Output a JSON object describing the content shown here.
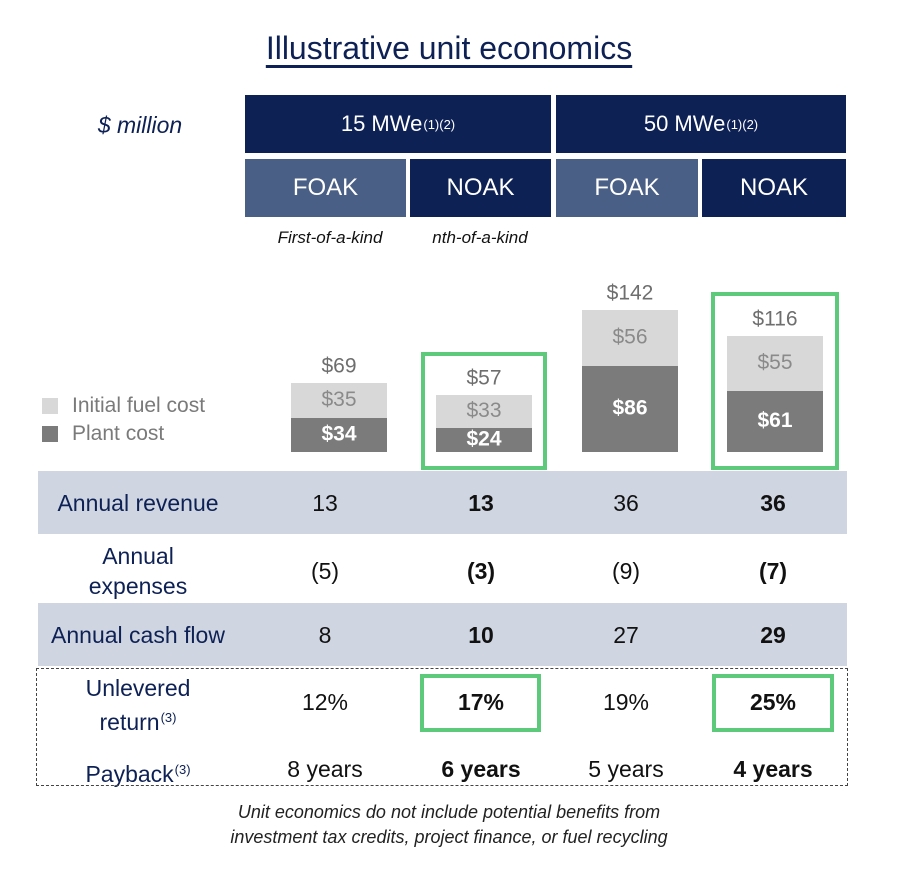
{
  "title": "Illustrative unit economics",
  "units_label": "$ million",
  "footnote_marks": "(1)(2)",
  "groups": [
    {
      "label": "15 MWe"
    },
    {
      "label": "50 MWe"
    }
  ],
  "columns": [
    {
      "label": "FOAK",
      "caption": "First-of-a-kind"
    },
    {
      "label": "NOAK",
      "caption": "nth-of-a-kind"
    },
    {
      "label": "FOAK",
      "caption": ""
    },
    {
      "label": "NOAK",
      "caption": ""
    }
  ],
  "legend": {
    "fuel": "Initial fuel cost",
    "plant": "Plant cost"
  },
  "colors": {
    "navy": "#0e2155",
    "slate": "#4a5f85",
    "plant": "#7b7b7b",
    "fuel": "#d8d8d8",
    "highlight": "#5dc97a",
    "band": "#cfd5e1"
  },
  "chart_data": {
    "type": "bar",
    "stacked": true,
    "categories": [
      "15 MWe FOAK",
      "15 MWe NOAK",
      "50 MWe FOAK",
      "50 MWe NOAK"
    ],
    "series": [
      {
        "name": "Plant cost",
        "values": [
          34,
          24,
          86,
          61
        ]
      },
      {
        "name": "Initial fuel cost",
        "values": [
          35,
          33,
          56,
          55
        ]
      }
    ],
    "totals": [
      69,
      57,
      142,
      116
    ],
    "plant_labels": [
      "$34",
      "$24",
      "$86",
      "$61"
    ],
    "fuel_labels": [
      "$35",
      "$33",
      "$56",
      "$55"
    ],
    "total_labels": [
      "$69",
      "$57",
      "$142",
      "$116"
    ],
    "highlighted": [
      false,
      true,
      false,
      true
    ],
    "legend_position": "left"
  },
  "table": {
    "rows": [
      {
        "label": "Annual revenue",
        "values": [
          "13",
          "13",
          "36",
          "36"
        ]
      },
      {
        "label": "Annual expenses",
        "values": [
          "(5)",
          "(3)",
          "(9)",
          "(7)"
        ]
      },
      {
        "label": "Annual cash flow",
        "values": [
          "8",
          "10",
          "27",
          "29"
        ]
      },
      {
        "label": "Unlevered return",
        "footnote": "(3)",
        "values": [
          "12%",
          "17%",
          "19%",
          "25%"
        ]
      },
      {
        "label": "Payback",
        "footnote": "(3)",
        "values": [
          "8 years",
          "6 years",
          "5 years",
          "4 years"
        ]
      }
    ]
  },
  "expenses_label": {
    "line1": "Annual",
    "line2": "expenses"
  },
  "return_label": {
    "line1": "Unlevered",
    "line2": "return"
  },
  "footer": {
    "line1": "Unit economics do not include potential benefits from",
    "line2": "investment tax credits, project finance, or fuel recycling"
  }
}
